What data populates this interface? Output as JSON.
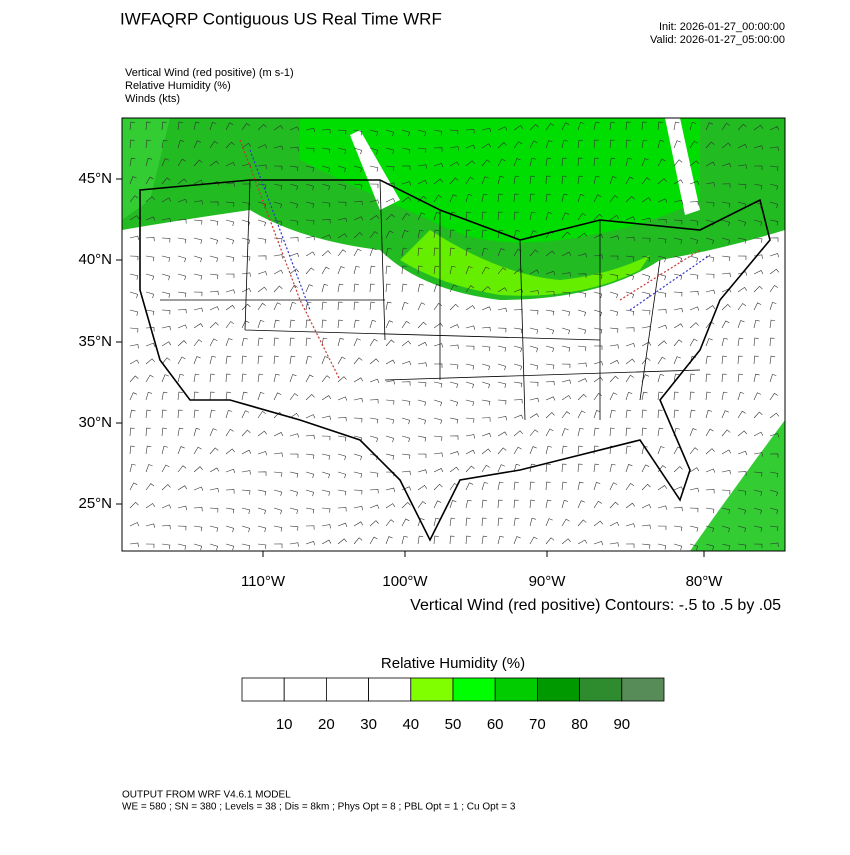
{
  "header": {
    "title": "IWFAQRP Contiguous US Real Time WRF",
    "init": "Init: 2026-01-27_00:00:00",
    "valid": "Valid: 2026-01-27_05:00:00"
  },
  "fields": [
    "Vertical Wind (red positive)   (m s-1)",
    "Relative Humidity   (%)",
    "Winds   (kts)"
  ],
  "map": {
    "lat_labels": [
      "45°N",
      "40°N",
      "35°N",
      "30°N",
      "25°N"
    ],
    "lon_labels": [
      "110°W",
      "100°W",
      "90°W",
      "80°W"
    ],
    "contour_note": "Vertical Wind (red positive) Contours: -.5 to .5 by .05"
  },
  "colorbar": {
    "title": "Relative Humidity  (%)",
    "colors": [
      "#ffffff",
      "#ffffff",
      "#ffffff",
      "#ffffff",
      "#80ff00",
      "#00ff00",
      "#00cc00",
      "#009900",
      "#2e8b2e",
      "#578b57"
    ],
    "labels": [
      10,
      20,
      30,
      40,
      50,
      60,
      70,
      80,
      90
    ]
  },
  "footer": [
    "OUTPUT FROM WRF V4.6.1 MODEL",
    "WE = 580 ; SN = 380 ; Levels = 38 ; Dis = 8km ; Phys Opt = 8 ; PBL Opt = 1 ; Cu Opt = 3"
  ]
}
